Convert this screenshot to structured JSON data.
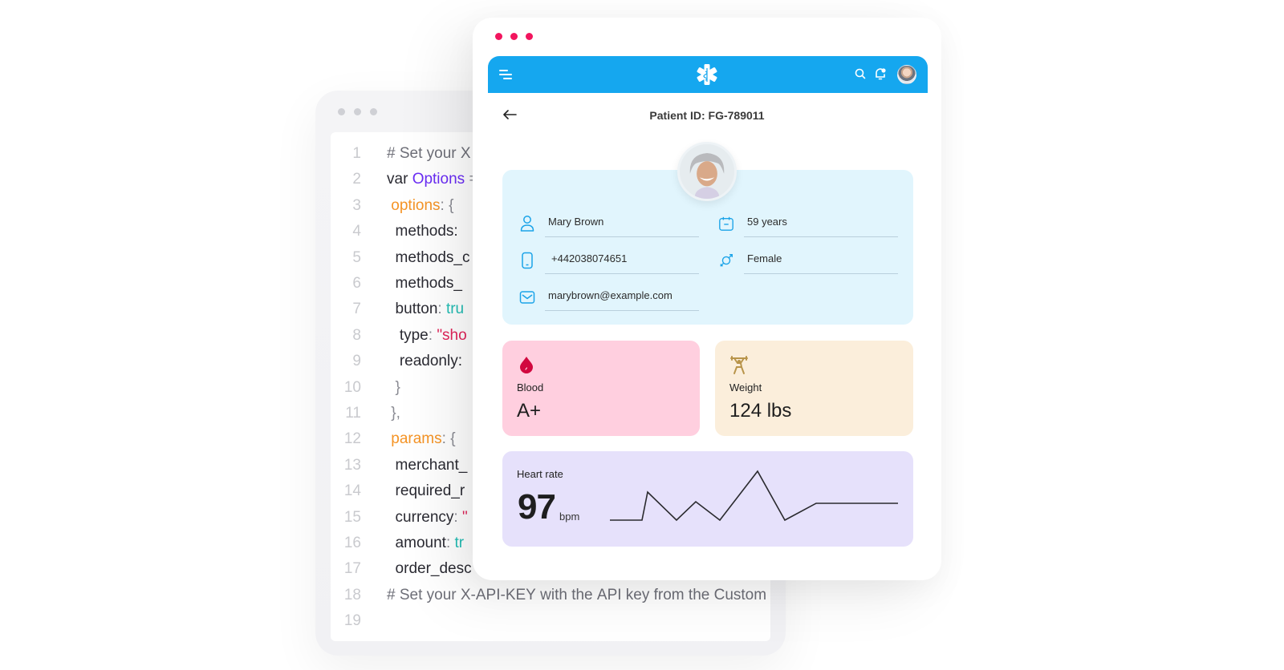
{
  "code_window": {
    "lines": [
      {
        "num": "1",
        "tokens": [
          {
            "t": "# Set your X",
            "c": "comment"
          }
        ]
      },
      {
        "num": "2",
        "tokens": [
          {
            "t": "var ",
            "c": "plain"
          },
          {
            "t": "Options",
            "c": "purple"
          },
          {
            "t": " =",
            "c": "punc"
          }
        ]
      },
      {
        "num": "3",
        "tokens": [
          {
            "t": " options",
            "c": "orange"
          },
          {
            "t": ": {",
            "c": "punc"
          }
        ]
      },
      {
        "num": "4",
        "tokens": [
          {
            "t": "  methods:",
            "c": "plain"
          }
        ]
      },
      {
        "num": "5",
        "tokens": [
          {
            "t": "  methods_c",
            "c": "plain"
          }
        ]
      },
      {
        "num": "6",
        "tokens": [
          {
            "t": "  methods_",
            "c": "plain"
          }
        ]
      },
      {
        "num": "7",
        "tokens": [
          {
            "t": "  button",
            "c": "plain"
          },
          {
            "t": ": ",
            "c": "punc"
          },
          {
            "t": "tru",
            "c": "teal"
          }
        ]
      },
      {
        "num": "8",
        "tokens": [
          {
            "t": "   type",
            "c": "plain"
          },
          {
            "t": ": ",
            "c": "punc"
          },
          {
            "t": "\"sho",
            "c": "pink"
          }
        ]
      },
      {
        "num": "9",
        "tokens": [
          {
            "t": "   readonly:",
            "c": "plain"
          }
        ]
      },
      {
        "num": "10",
        "tokens": [
          {
            "t": "  }",
            "c": "punc"
          }
        ]
      },
      {
        "num": "11",
        "tokens": [
          {
            "t": " },",
            "c": "punc"
          }
        ]
      },
      {
        "num": "12",
        "tokens": [
          {
            "t": " params",
            "c": "orange"
          },
          {
            "t": ": {",
            "c": "punc"
          }
        ]
      },
      {
        "num": "13",
        "tokens": [
          {
            "t": "  merchant_",
            "c": "plain"
          }
        ]
      },
      {
        "num": "14",
        "tokens": [
          {
            "t": "  required_r",
            "c": "plain"
          }
        ]
      },
      {
        "num": "15",
        "tokens": [
          {
            "t": "  currency",
            "c": "plain"
          },
          {
            "t": ": ",
            "c": "punc"
          },
          {
            "t": "\"",
            "c": "pink"
          }
        ]
      },
      {
        "num": "16",
        "tokens": [
          {
            "t": "  amount",
            "c": "plain"
          },
          {
            "t": ": ",
            "c": "punc"
          },
          {
            "t": "tr",
            "c": "teal"
          }
        ]
      },
      {
        "num": "17",
        "tokens": [
          {
            "t": "  order_desc",
            "c": "plain"
          }
        ]
      },
      {
        "num": "18",
        "tokens": [
          {
            "t": "# Set your X-API-KEY with the API key from the Custom",
            "c": "comment"
          }
        ]
      },
      {
        "num": "19",
        "tokens": []
      }
    ]
  },
  "patient_window": {
    "header": {
      "menu_icon": "menu-icon",
      "logo_icon": "star-of-life-icon",
      "search_icon": "search-icon",
      "notification_icon": "bell-icon",
      "avatar": "user-avatar"
    },
    "back_icon": "arrow-left-icon",
    "title": "Patient ID: FG-789011",
    "profile": {
      "name": "Mary Brown",
      "age": "59 years",
      "phone": "+442038074651",
      "gender": "Female",
      "email": "marybrown@example.com"
    },
    "stats": {
      "blood": {
        "label": "Blood",
        "value": "A+",
        "icon": "blood-drop-icon",
        "color": "#d1083f",
        "bg": "#ffcfdf"
      },
      "weight": {
        "label": "Weight",
        "value": "124 lbs",
        "icon": "weightlifter-icon",
        "color": "#b8944a",
        "bg": "#fbeedb"
      },
      "heart_rate": {
        "label": "Heart rate",
        "value": "97",
        "unit": "bpm",
        "bg": "#e6e1fb"
      }
    },
    "colors": {
      "header_bg": "#15a7ef",
      "window_dots": "#f2155e",
      "info_card_bg": "#e1f5fd",
      "icon_blue": "#1aa3e8"
    }
  },
  "chart_data": {
    "type": "line",
    "title": "Heart rate",
    "x": [
      0,
      1,
      2,
      3,
      4,
      5,
      6,
      7,
      8,
      9
    ],
    "values": [
      0,
      0,
      35,
      0,
      23,
      0,
      61,
      0,
      21,
      21
    ],
    "xlabel": "",
    "ylabel": "",
    "grid": false,
    "note": "Sparkline with no axes; values are relative heights above baseline in pixels"
  }
}
